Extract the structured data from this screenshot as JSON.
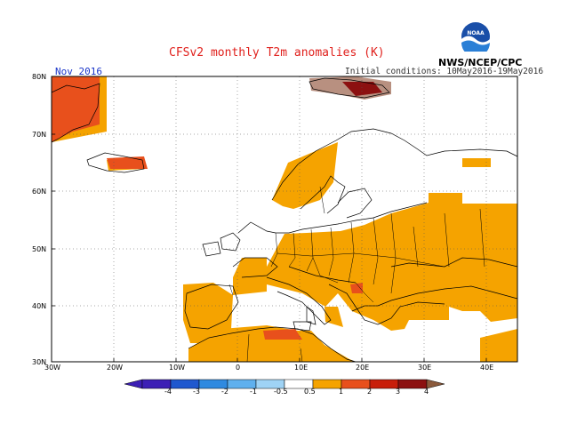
{
  "header": {
    "title": "CFSv2 monthly T2m anomalies (K)",
    "agency": "NWS/NCEP/CPC",
    "month": "Nov 2016",
    "initial_conditions": "Initial conditions: 10May2016-19May2016",
    "logo_text": "NOAA"
  },
  "map": {
    "lat_labels": [
      "80N",
      "70N",
      "60N",
      "50N",
      "40N",
      "30N"
    ],
    "lon_labels": [
      "30W",
      "20W",
      "10W",
      "0",
      "10E",
      "20E",
      "30E",
      "40E"
    ]
  },
  "colorbar": {
    "labels": [
      "-4",
      "-3",
      "-2",
      "-1",
      "-0.5",
      "0.5",
      "1",
      "2",
      "3",
      "4"
    ],
    "colors": [
      "#3c1fb5",
      "#1f58cf",
      "#2f8ae0",
      "#5fb0ee",
      "#9fd3f5",
      "#ffffff",
      "#f5a300",
      "#e8501c",
      "#c81e0a",
      "#8c1010",
      "#b89080"
    ]
  },
  "colors": {
    "anom_05_1": "#f5a300",
    "anom_1_2": "#e8501c",
    "anom_2_3": "#c81e0a",
    "anom_3_4": "#8c1010",
    "anom_gt4": "#b89080",
    "title_red": "#e0201c",
    "month_blue": "#1a35c8"
  }
}
